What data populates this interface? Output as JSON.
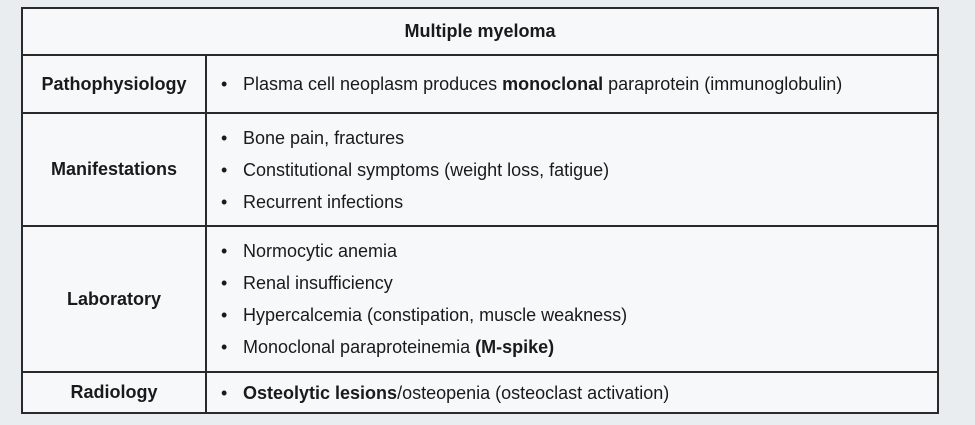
{
  "table": {
    "title": "Multiple myeloma",
    "bullet": "•",
    "rows": [
      {
        "label": "Pathophysiology",
        "items": [
          {
            "parts": [
              "Plasma cell neoplasm produces ",
              "monoclonal",
              " paraprotein (immunoglobulin)"
            ]
          }
        ]
      },
      {
        "label": "Manifestations",
        "items": [
          {
            "parts": [
              "Bone pain, fractures"
            ]
          },
          {
            "parts": [
              "Constitutional symptoms (weight loss, fatigue)"
            ]
          },
          {
            "parts": [
              "Recurrent infections"
            ]
          }
        ]
      },
      {
        "label": "Laboratory",
        "items": [
          {
            "parts": [
              "Normocytic anemia"
            ]
          },
          {
            "parts": [
              "Renal insufficiency"
            ]
          },
          {
            "parts": [
              "Hypercalcemia (constipation, muscle weakness)"
            ]
          },
          {
            "parts": [
              "Monoclonal paraproteinemia ",
              "(M-spike)"
            ]
          }
        ]
      },
      {
        "label": "Radiology",
        "items": [
          {
            "parts": [
              "",
              "Osteolytic lesions",
              "/osteopenia (osteoclast activation)"
            ]
          }
        ]
      }
    ]
  }
}
